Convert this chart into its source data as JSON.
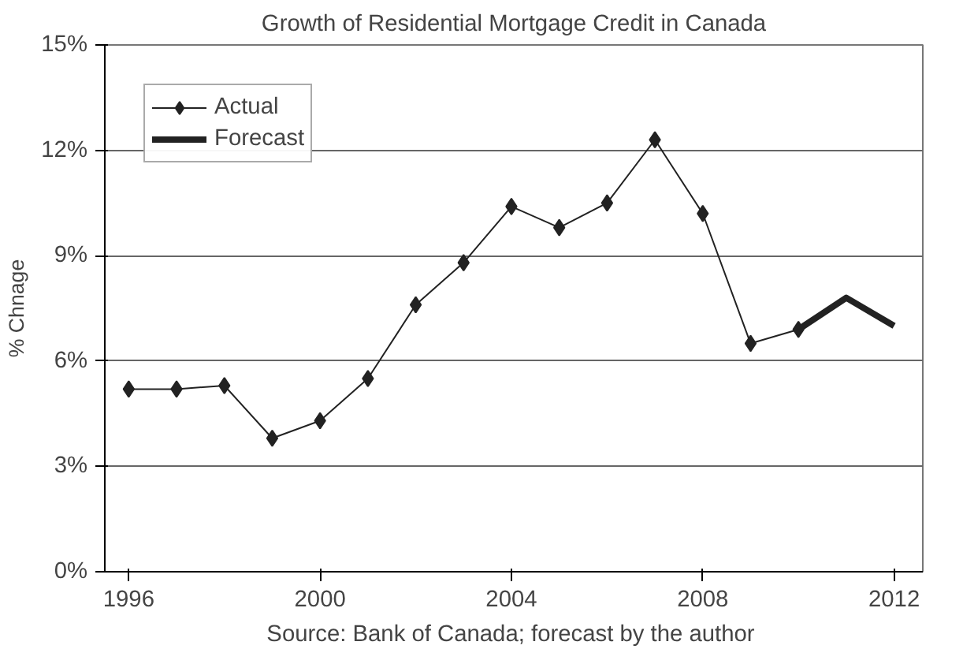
{
  "chart_data": {
    "type": "line",
    "title": "Growth of Residential Mortgage Credit in Canada",
    "ylabel": "% Chnage",
    "annotations": [
      "Source:  Bank of Canada; forecast by the author"
    ],
    "series": [
      {
        "name": "Actual",
        "color": "#222222",
        "marker": "diamond",
        "x": [
          1996,
          1997,
          1998,
          1999,
          2000,
          2001,
          2002,
          2003,
          2004,
          2005,
          2006,
          2007,
          2008,
          2009,
          2010
        ],
        "values": [
          5.2,
          5.2,
          5.3,
          3.8,
          4.3,
          5.5,
          7.6,
          8.8,
          10.4,
          9.8,
          10.5,
          12.3,
          10.2,
          6.5,
          6.9
        ]
      },
      {
        "name": "Forecast",
        "color": "#222222",
        "marker": "none",
        "x": [
          2010,
          2011,
          2012
        ],
        "values": [
          6.9,
          7.8,
          7.0
        ]
      }
    ],
    "xlim": [
      1995.5,
      2012.6
    ],
    "xticks": [
      1996,
      2000,
      2004,
      2008,
      2012
    ],
    "ylim": [
      0,
      15
    ],
    "yticks": [
      {
        "value": 0,
        "label": "0%"
      },
      {
        "value": 3,
        "label": "3%"
      },
      {
        "value": 6,
        "label": "6%"
      },
      {
        "value": 9,
        "label": "9%"
      },
      {
        "value": 12,
        "label": "12%"
      },
      {
        "value": 15,
        "label": "15%"
      }
    ],
    "grid": "y",
    "legend": "top left"
  }
}
